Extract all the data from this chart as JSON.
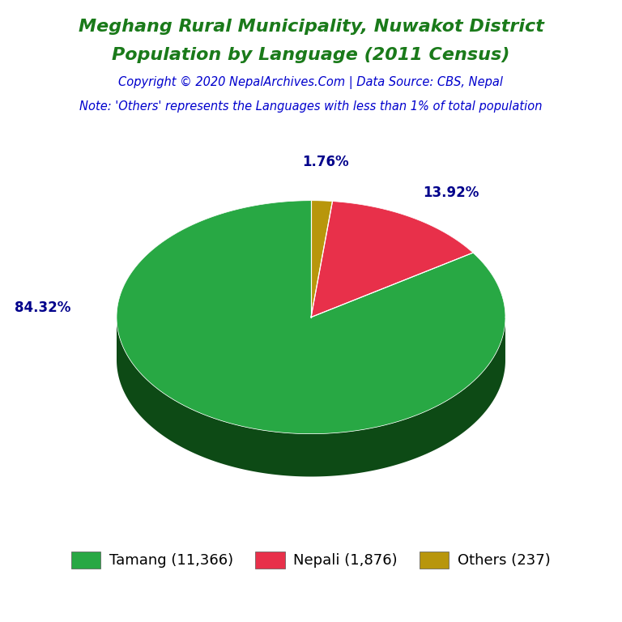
{
  "title_line1": "Meghang Rural Municipality, Nuwakot District",
  "title_line2": "Population by Language (2011 Census)",
  "title_color": "#1A7A1A",
  "copyright_text": "Copyright © 2020 NepalArchives.Com | Data Source: CBS, Nepal",
  "copyright_color": "#0000CD",
  "note_text": "Note: 'Others' represents the Languages with less than 1% of total population",
  "note_color": "#0000CD",
  "labels": [
    "Tamang",
    "Nepali",
    "Others"
  ],
  "values": [
    11366,
    1876,
    237
  ],
  "percentages": [
    84.32,
    13.92,
    1.76
  ],
  "colors": [
    "#28A844",
    "#E8304A",
    "#B8960C"
  ],
  "edge_colors": [
    "#0D4A15",
    "#6B0E1E",
    "#6B5507"
  ],
  "legend_labels": [
    "Tamang (11,366)",
    "Nepali (1,876)",
    "Others (237)"
  ],
  "legend_colors": [
    "#28A844",
    "#E8304A",
    "#B8960C"
  ],
  "pct_color": "#00008B",
  "background_color": "#FFFFFF",
  "figsize": [
    7.68,
    7.68
  ],
  "dpi": 100
}
